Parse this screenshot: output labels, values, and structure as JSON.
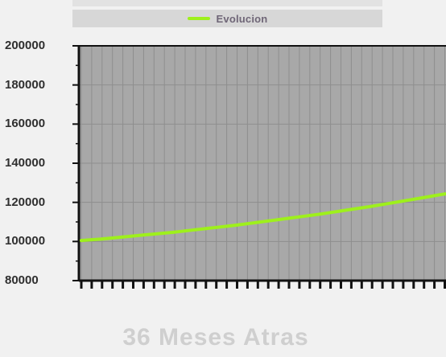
{
  "chart_data": {
    "type": "line",
    "xlabel": "36 Meses Atras",
    "ylabel": "",
    "ylim": [
      80000,
      200000
    ],
    "y_ticks": [
      80000,
      100000,
      120000,
      140000,
      160000,
      180000,
      200000
    ],
    "grid": true,
    "legend_position": "top",
    "series": [
      {
        "name": "Evolucion",
        "color": "#9ef01c",
        "values": [
          100500,
          100900,
          101300,
          101800,
          102300,
          102800,
          103300,
          103800,
          104300,
          104800,
          105400,
          106000,
          106600,
          107200,
          107800,
          108400,
          109100,
          109800,
          110500,
          111200,
          111900,
          112600,
          113300,
          114000,
          114800,
          115600,
          116400,
          117200,
          118000,
          118900,
          119800,
          120700,
          121600,
          122500,
          123400,
          124300
        ]
      }
    ]
  },
  "colors": {
    "background": "#f1f1f1",
    "plot_background": "#a8a8a8",
    "grid": "#8e8e8e",
    "axis": "#111111",
    "line": "#9ef01c"
  }
}
